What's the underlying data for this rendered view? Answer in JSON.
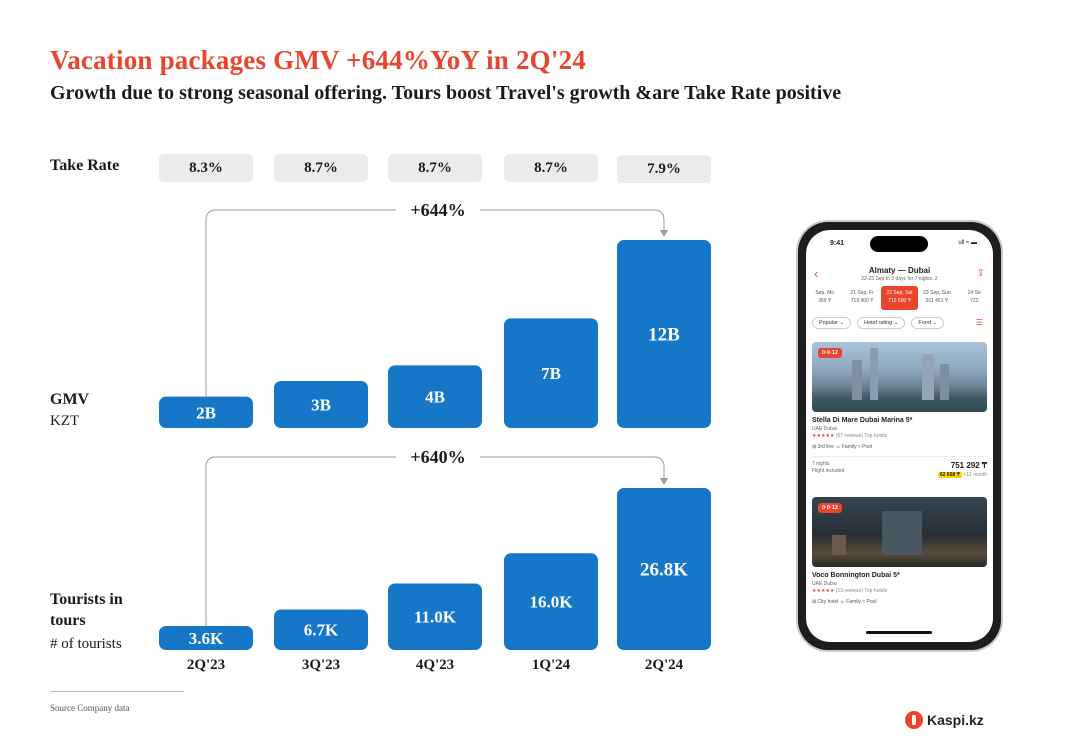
{
  "header": {
    "title": "Vacation packages GMV +644%YoY in 2Q'24",
    "subtitle": "Growth due to strong seasonal offering. Tours boost Travel's growth &are Take Rate positive"
  },
  "rows": {
    "take_rate_label": "Take Rate",
    "gmv_label": "GMV",
    "gmv_unit": "KZT",
    "tourists_label": "Tourists in tours",
    "tourists_unit": "# of tourists"
  },
  "chart_data": {
    "type": "bar",
    "categories": [
      "2Q'23",
      "3Q'23",
      "4Q'23",
      "1Q'24",
      "2Q'24"
    ],
    "take_rate": [
      "8.3%",
      "8.7%",
      "8.7%",
      "8.7%",
      "7.9%"
    ],
    "series": [
      {
        "name": "GMV",
        "values": [
          2,
          3,
          4,
          7,
          12
        ],
        "labels": [
          "2B",
          "3B",
          "4B",
          "7B",
          "12B"
        ],
        "growth_annotation": "+644%"
      },
      {
        "name": "Tourists in tours",
        "values": [
          3.6,
          6.7,
          11.0,
          16.0,
          26.8
        ],
        "labels": [
          "3.6K",
          "6.7K",
          "11.0K",
          "16.0K",
          "26.8K"
        ],
        "growth_annotation": "+640%"
      }
    ],
    "colors": {
      "bar": "#1677c8",
      "accent": "#e8442e",
      "pill": "#ebebeb"
    }
  },
  "footer": {
    "source": "Source    Company data",
    "logo_text": "Kaspi.kz"
  },
  "phone": {
    "time": "9:41",
    "status": "ull  ≈  ▬",
    "route": "Almaty — Dubai",
    "dates_line": "22-23 Sep to 3 days for 7 nights, 2",
    "date_strip": [
      {
        "day": "Sep, Mo",
        "price": "359 ₸"
      },
      {
        "day": "21 Sep, Fr",
        "price": "719 900 ₸"
      },
      {
        "day": "22 Sep, Sat",
        "price": "715 500 ₸"
      },
      {
        "day": "23 Sep, Sun",
        "price": "911 451 ₸"
      },
      {
        "day": "24 Se",
        "price": "722"
      }
    ],
    "filters": [
      "Popular ⌄",
      "Hotel rating ⌄",
      "Food ⌄"
    ],
    "hotels": [
      {
        "badge": "0·0·12",
        "name": "Stella Di Mare Dubai Marina 5*",
        "location": "UAE Dubai",
        "stars": "★★★★★",
        "reviews": "(67 reviews) Top hotels",
        "amenities": "⊞ 3rd line   ☺ Family   ≈ Pool",
        "nights": "7 nights",
        "included": "Flight included",
        "price": "751 292 ₸",
        "monthly": "62 608 ₸",
        "monthly_suffix": "×12 month"
      },
      {
        "badge": "0·0·12",
        "name": "Voco Bonnington Dubai 5*",
        "location": "UAE Dubai",
        "stars": "★★★★★",
        "reviews": "(13 reviews) Top hotels",
        "amenities": "⊞ City hotel   ☺ Family   ≈ Pool"
      }
    ]
  }
}
